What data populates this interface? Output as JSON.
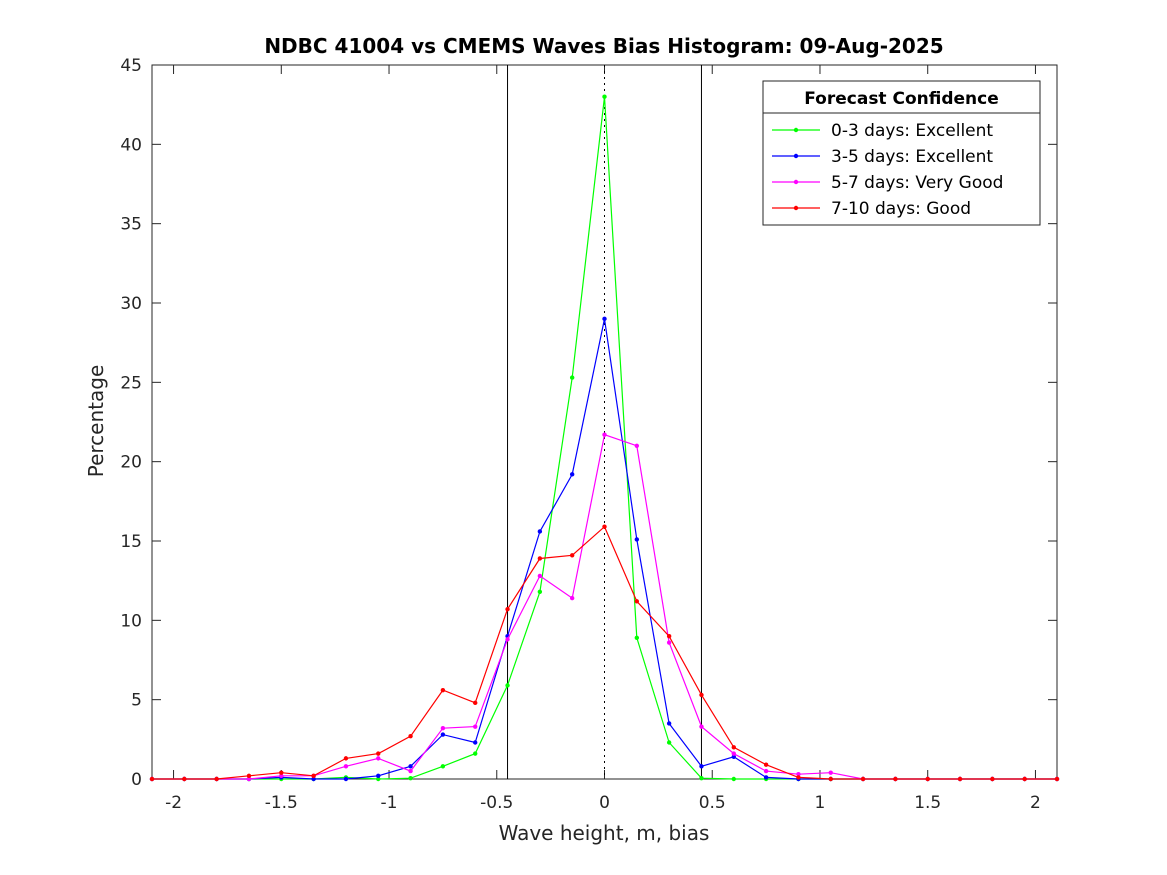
{
  "chart_data": {
    "type": "line",
    "title": "NDBC 41004 vs CMEMS Waves Bias Histogram: 09-Aug-2025",
    "xlabel": "Wave height, m, bias",
    "ylabel": "Percentage",
    "xlim": [
      -2.1,
      2.1
    ],
    "ylim": [
      0,
      45
    ],
    "xticks": [
      -2,
      -1.5,
      -1,
      -0.5,
      0,
      0.5,
      1,
      1.5,
      2
    ],
    "xtick_labels": [
      "-2",
      "-1.5",
      "-1",
      "-0.5",
      "0",
      "0.5",
      "1",
      "1.5",
      "2"
    ],
    "yticks": [
      0,
      5,
      10,
      15,
      20,
      25,
      30,
      35,
      40,
      45
    ],
    "ytick_labels": [
      "0",
      "5",
      "10",
      "15",
      "20",
      "25",
      "30",
      "35",
      "40",
      "45"
    ],
    "grid": false,
    "legend": {
      "title": "Forecast Confidence",
      "placement": "top-right"
    },
    "vertical_lines": [
      {
        "x": -0.45,
        "style": "solid"
      },
      {
        "x": 0,
        "style": "dotted"
      },
      {
        "x": 0.45,
        "style": "solid"
      }
    ],
    "x": [
      -2.1,
      -1.95,
      -1.8,
      -1.65,
      -1.5,
      -1.35,
      -1.2,
      -1.05,
      -0.9,
      -0.75,
      -0.6,
      -0.45,
      -0.3,
      -0.15,
      0,
      0.15,
      0.3,
      0.45,
      0.6,
      0.75,
      0.9,
      1.05,
      1.2,
      1.35,
      1.5,
      1.65,
      1.8,
      1.95,
      2.1
    ],
    "series": [
      {
        "name": "0-3 days: Excellent",
        "color": "#00ff00",
        "values": [
          0,
          0,
          0,
          0,
          0,
          0,
          0.1,
          0,
          0.05,
          0.8,
          1.6,
          5.9,
          11.8,
          25.3,
          43.0,
          8.9,
          2.3,
          0.05,
          0,
          0,
          0,
          0,
          0,
          0,
          0,
          0,
          0,
          0,
          0
        ]
      },
      {
        "name": "3-5 days: Excellent",
        "color": "#0000ff",
        "values": [
          0,
          0,
          0,
          0,
          0.1,
          0,
          0,
          0.2,
          0.8,
          2.8,
          2.3,
          9.0,
          15.6,
          19.2,
          29.0,
          15.1,
          3.5,
          0.8,
          1.4,
          0.1,
          0,
          0,
          0,
          0,
          0,
          0,
          0,
          0,
          0
        ]
      },
      {
        "name": "5-7 days: Very Good",
        "color": "#ff00ff",
        "values": [
          0,
          0,
          0,
          0,
          0.2,
          0.2,
          0.8,
          1.3,
          0.5,
          3.2,
          3.3,
          8.8,
          12.8,
          11.4,
          21.7,
          21.0,
          8.6,
          3.3,
          1.6,
          0.5,
          0.3,
          0.4,
          0,
          0,
          0,
          0,
          0,
          0,
          0
        ]
      },
      {
        "name": "7-10 days: Good",
        "color": "#ff0000",
        "values": [
          0,
          0,
          0,
          0.2,
          0.4,
          0.2,
          1.3,
          1.6,
          2.7,
          5.6,
          4.8,
          10.7,
          13.9,
          14.1,
          15.9,
          11.2,
          9.0,
          5.3,
          2.0,
          0.9,
          0.1,
          0,
          0,
          0,
          0,
          0,
          0,
          0,
          0
        ]
      }
    ]
  }
}
